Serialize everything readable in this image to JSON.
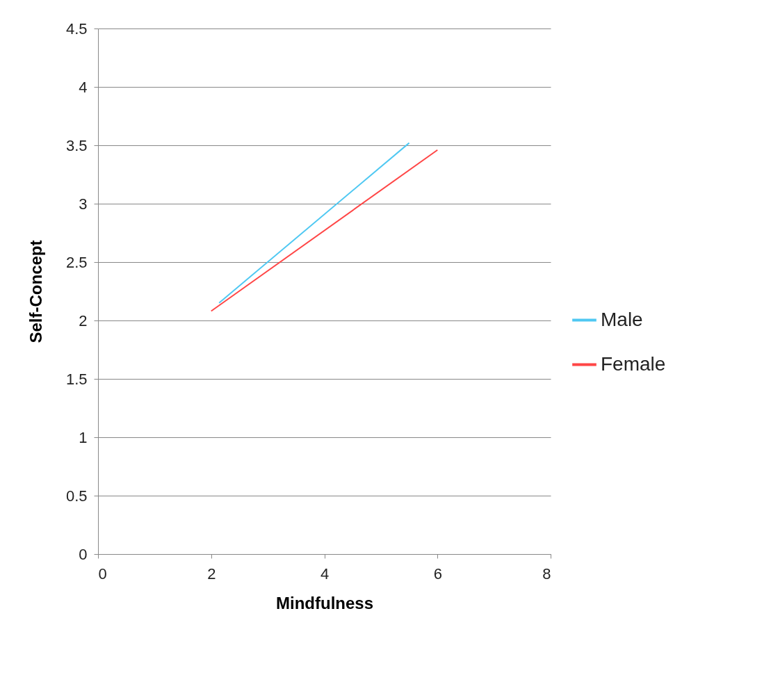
{
  "chart_data": {
    "type": "line",
    "xlabel": "Mindfulness",
    "ylabel": "Self-Concept",
    "xlim": [
      0,
      8
    ],
    "xticks": [
      0,
      2,
      4,
      6,
      8
    ],
    "ylim": [
      0,
      4.5
    ],
    "yticks": [
      0,
      0.5,
      1,
      1.5,
      2,
      2.5,
      3,
      3.5,
      4,
      4.5
    ],
    "grid": "y",
    "legend": "right",
    "marker": "none",
    "line_style": "solid",
    "series": [
      {
        "name": "Male",
        "color": "#4fc8f2",
        "x": [
          2.14,
          5.5
        ],
        "values": [
          2.15,
          3.52
        ]
      },
      {
        "name": "Female",
        "color": "#ff4646",
        "x": [
          2.0,
          6.0
        ],
        "values": [
          2.08,
          3.46
        ]
      }
    ]
  }
}
